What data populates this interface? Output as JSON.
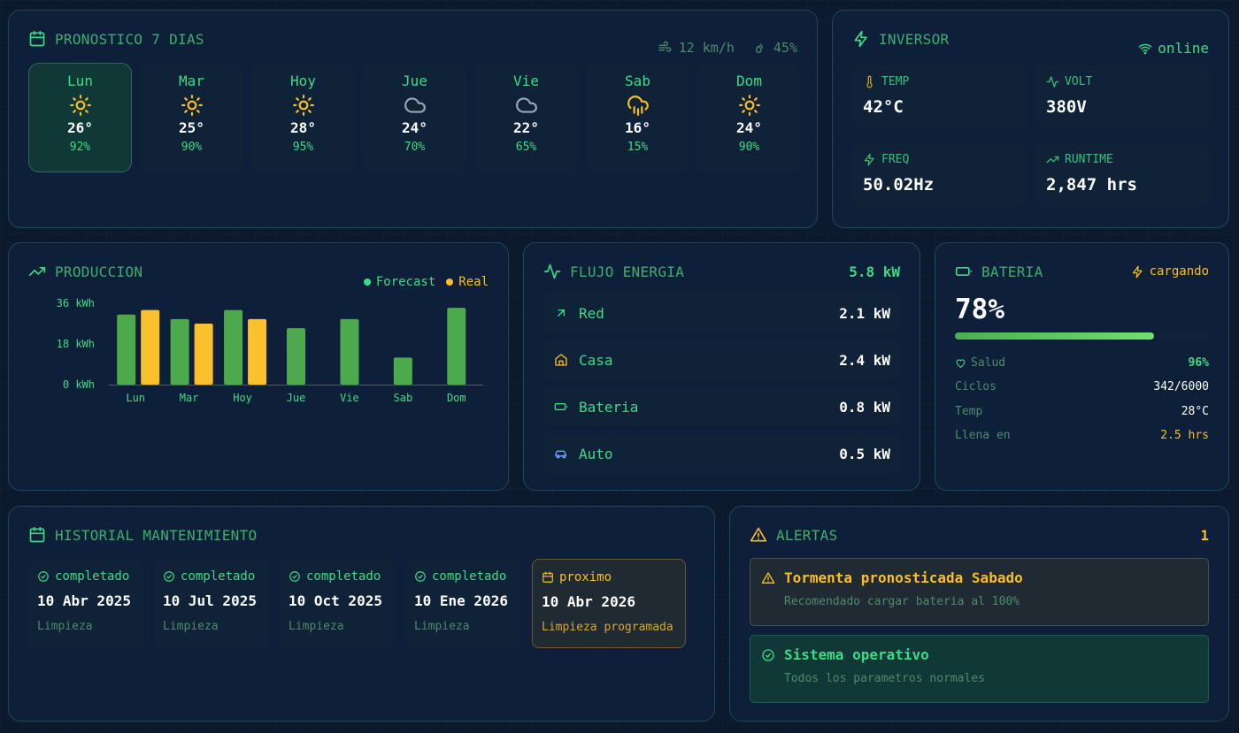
{
  "forecast": {
    "title": "PRONOSTICO 7 DIAS",
    "wind": "12 km/h",
    "humidity": "45%",
    "days": [
      {
        "name": "Lun",
        "icon": "sun-icon",
        "temp": "26°",
        "pct": "92%",
        "selected": true
      },
      {
        "name": "Mar",
        "icon": "sun-icon",
        "temp": "25°",
        "pct": "90%"
      },
      {
        "name": "Hoy",
        "icon": "sun-icon",
        "temp": "28°",
        "pct": "95%"
      },
      {
        "name": "Jue",
        "icon": "cloud-icon",
        "temp": "24°",
        "pct": "70%"
      },
      {
        "name": "Vie",
        "icon": "cloud-icon",
        "temp": "22°",
        "pct": "65%"
      },
      {
        "name": "Sab",
        "icon": "cloud-rain-icon",
        "temp": "16°",
        "pct": "15%"
      },
      {
        "name": "Dom",
        "icon": "sun-icon",
        "temp": "24°",
        "pct": "90%"
      }
    ]
  },
  "inverter": {
    "title": "INVERSOR",
    "status": "online",
    "temp_label": "TEMP",
    "temp": "42°C",
    "volt_label": "VOLT",
    "volt": "380V",
    "freq_label": "FREQ",
    "freq": "50.02Hz",
    "runtime_label": "RUNTIME",
    "runtime": "2,847 hrs"
  },
  "production": {
    "title": "PRODUCCION",
    "legend_forecast": "Forecast",
    "legend_real": "Real"
  },
  "chart_data": {
    "type": "bar",
    "categories": [
      "Lun",
      "Mar",
      "Hoy",
      "Jue",
      "Vie",
      "Sab",
      "Dom"
    ],
    "series": [
      {
        "name": "Forecast",
        "color": "#4caa4c",
        "values": [
          31,
          29,
          33,
          25,
          29,
          12,
          34
        ]
      },
      {
        "name": "Real",
        "color": "#fbc02d",
        "values": [
          33,
          27,
          29,
          null,
          null,
          null,
          null
        ]
      }
    ],
    "yticks": [
      "0 kWh",
      "18 kWh",
      "36 kWh"
    ],
    "ylim": [
      0,
      36
    ]
  },
  "flow": {
    "title": "FLUJO ENERGIA",
    "total": "5.8 kW",
    "rows": [
      {
        "label": "Red",
        "value": "2.1 kW",
        "icon": "arrow-up-right-icon"
      },
      {
        "label": "Casa",
        "value": "2.4 kW",
        "icon": "home-icon"
      },
      {
        "label": "Bateria",
        "value": "0.8 kW",
        "icon": "battery-icon"
      },
      {
        "label": "Auto",
        "value": "0.5 kW",
        "icon": "car-icon"
      }
    ]
  },
  "battery": {
    "title": "BATERIA",
    "status": "cargando",
    "percent": "78%",
    "level": 0.78,
    "health_label": "Salud",
    "health": "96%",
    "cycles_label": "Ciclos",
    "cycles": "342/6000",
    "temp_label": "Temp",
    "temp": "28°C",
    "full_label": "Llena en",
    "full": "2.5 hrs"
  },
  "maintenance": {
    "title": "HISTORIAL MANTENIMIENTO",
    "items": [
      {
        "status": "completado",
        "date": "10 Abr 2025",
        "type": "Limpieza"
      },
      {
        "status": "completado",
        "date": "10 Jul 2025",
        "type": "Limpieza"
      },
      {
        "status": "completado",
        "date": "10 Oct 2025",
        "type": "Limpieza"
      },
      {
        "status": "completado",
        "date": "10 Ene 2026",
        "type": "Limpieza"
      },
      {
        "status": "proximo",
        "date": "10 Abr 2026",
        "type": "Limpieza programada"
      }
    ]
  },
  "alerts": {
    "title": "ALERTAS",
    "count": "1",
    "items": [
      {
        "title": "Tormenta pronosticada Sabado",
        "desc": "Recomendado cargar bateria al 100%"
      },
      {
        "title": "Sistema operativo",
        "desc": "Todos los parametros normales"
      }
    ]
  }
}
